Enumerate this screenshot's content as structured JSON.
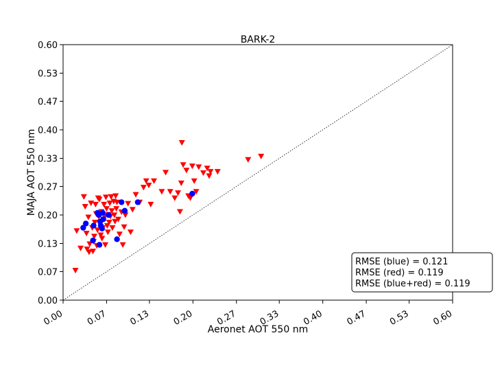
{
  "chart_data": {
    "type": "scatter",
    "title": "BARK-2",
    "xlabel": "Aeronet AOT 550 nm",
    "ylabel": "MAJA AOT 550 nm",
    "xlim": [
      0.0,
      0.6
    ],
    "ylim": [
      0.0,
      0.6
    ],
    "x_ticks": [
      0.0,
      0.067,
      0.133,
      0.2,
      0.267,
      0.333,
      0.4,
      0.467,
      0.533,
      0.6
    ],
    "x_tick_labels": [
      "0.00",
      "0.07",
      "0.13",
      "0.20",
      "0.27",
      "0.33",
      "0.40",
      "0.47",
      "0.53",
      "0.60"
    ],
    "y_ticks": [
      0.0,
      0.067,
      0.133,
      0.2,
      0.267,
      0.333,
      0.4,
      0.467,
      0.533,
      0.6
    ],
    "y_tick_labels": [
      "0.00",
      "0.07",
      "0.13",
      "0.20",
      "0.27",
      "0.33",
      "0.40",
      "0.47",
      "0.53",
      "0.60"
    ],
    "grid": false,
    "reference_line": {
      "style": "dotted",
      "from": [
        0.0,
        0.0
      ],
      "to": [
        0.6,
        0.6
      ]
    },
    "colors": {
      "blue": "#0000ff",
      "red": "#ff0000"
    },
    "series": [
      {
        "marker": "triangle-down",
        "color": "#ff0000",
        "points": [
          [
            0.019,
            0.07
          ],
          [
            0.021,
            0.163
          ],
          [
            0.027,
            0.122
          ],
          [
            0.032,
            0.243
          ],
          [
            0.034,
            0.22
          ],
          [
            0.036,
            0.157
          ],
          [
            0.037,
            0.12
          ],
          [
            0.039,
            0.195
          ],
          [
            0.04,
            0.113
          ],
          [
            0.041,
            0.132
          ],
          [
            0.043,
            0.228
          ],
          [
            0.045,
            0.17
          ],
          [
            0.046,
            0.115
          ],
          [
            0.047,
            0.138
          ],
          [
            0.048,
            0.15
          ],
          [
            0.049,
            0.183
          ],
          [
            0.05,
            0.225
          ],
          [
            0.051,
            0.203
          ],
          [
            0.052,
            0.128
          ],
          [
            0.053,
            0.165
          ],
          [
            0.054,
            0.24
          ],
          [
            0.055,
            0.197
          ],
          [
            0.056,
            0.237
          ],
          [
            0.057,
            0.178
          ],
          [
            0.058,
            0.153
          ],
          [
            0.059,
            0.208
          ],
          [
            0.06,
            0.145
          ],
          [
            0.061,
            0.17
          ],
          [
            0.062,
            0.19
          ],
          [
            0.063,
            0.225
          ],
          [
            0.064,
            0.198
          ],
          [
            0.065,
            0.13
          ],
          [
            0.066,
            0.242
          ],
          [
            0.067,
            0.215
          ],
          [
            0.068,
            0.175
          ],
          [
            0.069,
            0.16
          ],
          [
            0.07,
            0.201
          ],
          [
            0.071,
            0.183
          ],
          [
            0.072,
            0.228
          ],
          [
            0.073,
            0.197
          ],
          [
            0.074,
            0.243
          ],
          [
            0.075,
            0.21
          ],
          [
            0.076,
            0.17
          ],
          [
            0.078,
            0.232
          ],
          [
            0.079,
            0.2
          ],
          [
            0.08,
            0.185
          ],
          [
            0.081,
            0.245
          ],
          [
            0.082,
            0.215
          ],
          [
            0.083,
            0.23
          ],
          [
            0.085,
            0.19
          ],
          [
            0.087,
            0.155
          ],
          [
            0.09,
            0.207
          ],
          [
            0.092,
            0.13
          ],
          [
            0.094,
            0.172
          ],
          [
            0.096,
            0.2
          ],
          [
            0.1,
            0.227
          ],
          [
            0.104,
            0.16
          ],
          [
            0.107,
            0.213
          ],
          [
            0.112,
            0.248
          ],
          [
            0.118,
            0.23
          ],
          [
            0.124,
            0.265
          ],
          [
            0.128,
            0.28
          ],
          [
            0.132,
            0.27
          ],
          [
            0.135,
            0.225
          ],
          [
            0.14,
            0.28
          ],
          [
            0.152,
            0.255
          ],
          [
            0.158,
            0.3
          ],
          [
            0.165,
            0.255
          ],
          [
            0.172,
            0.24
          ],
          [
            0.177,
            0.252
          ],
          [
            0.18,
            0.208
          ],
          [
            0.182,
            0.275
          ],
          [
            0.183,
            0.37
          ],
          [
            0.185,
            0.318
          ],
          [
            0.19,
            0.305
          ],
          [
            0.193,
            0.245
          ],
          [
            0.196,
            0.24
          ],
          [
            0.199,
            0.315
          ],
          [
            0.202,
            0.28
          ],
          [
            0.205,
            0.255
          ],
          [
            0.209,
            0.313
          ],
          [
            0.216,
            0.299
          ],
          [
            0.222,
            0.31
          ],
          [
            0.225,
            0.292
          ],
          [
            0.227,
            0.302
          ],
          [
            0.238,
            0.302
          ],
          [
            0.285,
            0.33
          ],
          [
            0.305,
            0.338
          ]
        ]
      },
      {
        "marker": "circle",
        "color": "#0000ff",
        "points": [
          [
            0.031,
            0.17
          ],
          [
            0.035,
            0.18
          ],
          [
            0.046,
            0.14
          ],
          [
            0.047,
            0.175
          ],
          [
            0.053,
            0.205
          ],
          [
            0.055,
            0.2
          ],
          [
            0.056,
            0.13
          ],
          [
            0.057,
            0.185
          ],
          [
            0.058,
            0.175
          ],
          [
            0.06,
            0.168
          ],
          [
            0.061,
            0.205
          ],
          [
            0.062,
            0.19
          ],
          [
            0.07,
            0.2
          ],
          [
            0.083,
            0.143
          ],
          [
            0.09,
            0.23
          ],
          [
            0.095,
            0.21
          ],
          [
            0.115,
            0.23
          ],
          [
            0.199,
            0.25
          ]
        ]
      }
    ],
    "stats_box": {
      "location": "lower-right",
      "lines": [
        "RMSE (blue) = 0.121",
        "RMSE (red) = 0.119",
        "RMSE (blue+red) = 0.119"
      ]
    }
  }
}
